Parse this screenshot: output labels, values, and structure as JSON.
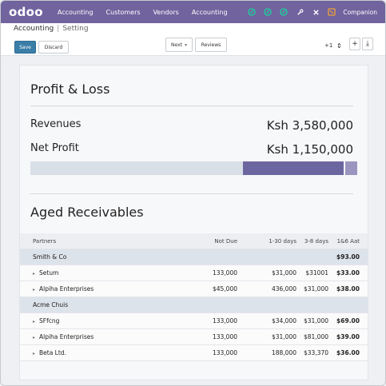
{
  "topnav": {
    "logo": "odoo",
    "menu": [
      "Accounting",
      "Customers",
      "Vendors",
      "Accounting"
    ],
    "icons": [
      "chat-icon",
      "link-icon",
      "link-icon",
      "wrench-icon",
      "close-icon"
    ],
    "company": "Companion"
  },
  "breadcrumb": {
    "root": "Accounting",
    "current": "Setting"
  },
  "controls": {
    "primary_label": "Save",
    "secondary_label": "Discard",
    "filter_label": "Next",
    "compare_label": "Reviews",
    "pager": "+1"
  },
  "profit_loss": {
    "title": "Profit & Loss",
    "revenues_label": "Revenues",
    "revenues_value": "Ksh 3,580,000",
    "net_profit_label": "Net Profit",
    "net_profit_value": "Ksh 1,150,000",
    "net_profit_ratio": 0.321
  },
  "aged_receivables": {
    "title": "Aged Receivables",
    "columns": [
      "Partners",
      "Not Due",
      "1-30 days",
      "3-8 days",
      "1&6 Aat"
    ],
    "groups": [
      {
        "name": "Smith & Co",
        "total": "$93.00",
        "lines": [
          {
            "name": "Setum",
            "not_due": "133,000",
            "b1": "$31,000",
            "b2": "$31001",
            "total": "$33.00"
          },
          {
            "name": "Alpiha Enterprises",
            "not_due": "$45,000",
            "b1": "436,000",
            "b2": "$31,000",
            "total": "$38.00"
          }
        ]
      },
      {
        "name": "Acme Chuis",
        "total": "",
        "lines": [
          {
            "name": "SFfcng",
            "not_due": "133,000",
            "b1": "$34,000",
            "b2": "$31,000",
            "total": "$69.00"
          },
          {
            "name": "Alpiha Enterprises",
            "not_due": "133,000",
            "b1": "$31,000",
            "b2": "$81,000",
            "total": "$39.00"
          },
          {
            "name": "Beta Ltd.",
            "not_due": "133,000",
            "b1": "188,000",
            "b2": "$33,370",
            "total": "$36.00"
          }
        ]
      }
    ]
  }
}
